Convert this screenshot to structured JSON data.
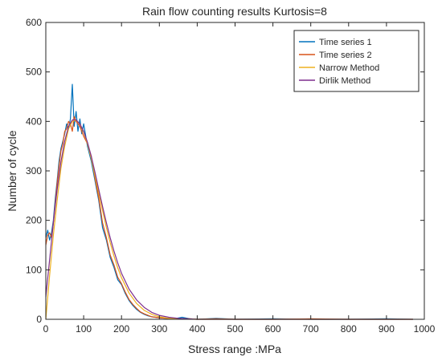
{
  "chart_data": {
    "type": "line",
    "title": "Rain flow counting results Kurtosis=8",
    "xlabel": "Stress range :MPa",
    "ylabel": "Number of cycle",
    "xlim": [
      0,
      1000
    ],
    "ylim": [
      0,
      600
    ],
    "xticks": [
      "0",
      "100",
      "200",
      "300",
      "400",
      "500",
      "600",
      "700",
      "800",
      "900",
      "1000"
    ],
    "yticks": [
      "0",
      "100",
      "200",
      "300",
      "400",
      "500",
      "600"
    ],
    "grid": false,
    "legend_position": "top-right",
    "series": [
      {
        "name": "Time series 1",
        "color": "#0072bd",
        "x": [
          0,
          5,
          10,
          15,
          20,
          25,
          30,
          35,
          40,
          45,
          50,
          55,
          60,
          65,
          70,
          75,
          80,
          85,
          90,
          95,
          100,
          110,
          120,
          130,
          140,
          150,
          160,
          170,
          180,
          190,
          200,
          210,
          220,
          230,
          240,
          250,
          260,
          270,
          280,
          300,
          320,
          340,
          360,
          380,
          400,
          450,
          500,
          600,
          700,
          800,
          900,
          970
        ],
        "y": [
          165,
          180,
          160,
          175,
          200,
          245,
          280,
          320,
          345,
          360,
          375,
          395,
          385,
          405,
          475,
          390,
          420,
          380,
          405,
          375,
          395,
          350,
          320,
          280,
          240,
          185,
          160,
          125,
          105,
          80,
          70,
          52,
          38,
          28,
          20,
          14,
          10,
          7,
          5,
          3,
          2,
          1,
          4,
          1,
          0,
          2,
          0,
          1,
          0,
          0,
          1,
          0
        ]
      },
      {
        "name": "Time series 2",
        "color": "#d95319",
        "x": [
          0,
          5,
          10,
          15,
          20,
          25,
          30,
          35,
          40,
          45,
          50,
          55,
          60,
          65,
          70,
          75,
          80,
          85,
          90,
          95,
          100,
          110,
          120,
          130,
          140,
          150,
          160,
          170,
          180,
          190,
          200,
          210,
          220,
          230,
          240,
          250,
          260,
          270,
          280,
          300,
          320,
          340,
          360,
          380,
          400,
          450,
          500,
          600,
          700,
          800,
          900,
          970
        ],
        "y": [
          150,
          170,
          175,
          165,
          195,
          235,
          275,
          310,
          340,
          355,
          380,
          385,
          400,
          395,
          380,
          410,
          400,
          395,
          390,
          380,
          370,
          355,
          330,
          285,
          245,
          195,
          165,
          130,
          110,
          85,
          72,
          55,
          40,
          30,
          22,
          15,
          11,
          8,
          5,
          3,
          2,
          2,
          1,
          1,
          0,
          1,
          0,
          0,
          1,
          0,
          0,
          0
        ]
      },
      {
        "name": "Narrow Method",
        "color": "#edb120",
        "x": [
          0,
          10,
          20,
          30,
          40,
          50,
          60,
          70,
          80,
          90,
          100,
          110,
          120,
          130,
          140,
          150,
          160,
          170,
          180,
          190,
          200,
          220,
          240,
          260,
          280,
          300,
          325,
          350,
          400,
          450,
          500,
          600,
          800,
          970
        ],
        "y": [
          0,
          88,
          170,
          240,
          305,
          350,
          385,
          400,
          402,
          395,
          378,
          355,
          325,
          290,
          255,
          220,
          185,
          155,
          128,
          104,
          84,
          53,
          32,
          18,
          10,
          5,
          2,
          1,
          0,
          0,
          0,
          0,
          0,
          0
        ]
      },
      {
        "name": "Dirlik Method",
        "color": "#7e2f8e",
        "x": [
          0,
          10,
          20,
          30,
          40,
          50,
          60,
          70,
          80,
          90,
          100,
          110,
          120,
          130,
          140,
          150,
          160,
          170,
          180,
          190,
          200,
          220,
          240,
          260,
          280,
          300,
          325,
          350,
          400,
          450,
          500,
          600,
          800,
          970
        ],
        "y": [
          45,
          120,
          195,
          262,
          318,
          360,
          390,
          403,
          403,
          395,
          380,
          358,
          330,
          297,
          262,
          228,
          195,
          165,
          138,
          114,
          93,
          61,
          39,
          24,
          14,
          8,
          4,
          2,
          0,
          0,
          0,
          0,
          0,
          0
        ]
      }
    ]
  }
}
